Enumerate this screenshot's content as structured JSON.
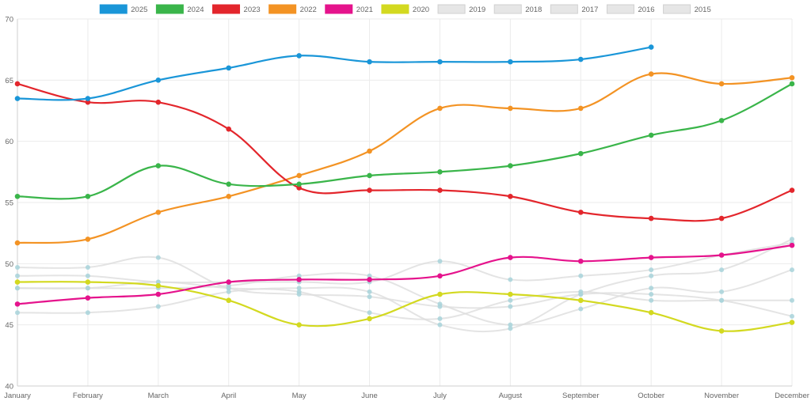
{
  "chart_data": {
    "type": "line",
    "categories": [
      "January",
      "February",
      "March",
      "April",
      "May",
      "June",
      "July",
      "August",
      "September",
      "October",
      "November",
      "December"
    ],
    "ylim": [
      40,
      70
    ],
    "yticks": [
      40,
      45,
      50,
      55,
      60,
      65,
      70
    ],
    "grid": true,
    "legend_position": "top",
    "series": [
      {
        "name": "2025",
        "color": "#1a96d8",
        "active": true,
        "values": [
          63.5,
          63.5,
          65.0,
          66.0,
          67.0,
          66.5,
          66.5,
          66.5,
          66.7,
          67.7,
          null,
          null
        ]
      },
      {
        "name": "2024",
        "color": "#3ab54a",
        "active": true,
        "values": [
          55.5,
          55.5,
          58.0,
          56.5,
          56.5,
          57.2,
          57.5,
          58.0,
          59.0,
          60.5,
          61.7,
          64.7
        ]
      },
      {
        "name": "2023",
        "color": "#e3262c",
        "active": true,
        "values": [
          64.7,
          63.2,
          63.2,
          61.0,
          56.2,
          56.0,
          56.0,
          55.5,
          54.2,
          53.7,
          53.7,
          56.0
        ]
      },
      {
        "name": "2022",
        "color": "#f39324",
        "active": true,
        "values": [
          51.7,
          52.0,
          54.2,
          55.5,
          57.2,
          59.2,
          62.7,
          62.7,
          62.7,
          65.5,
          64.7,
          65.2
        ]
      },
      {
        "name": "2021",
        "color": "#e5138c",
        "active": true,
        "values": [
          46.7,
          47.2,
          47.5,
          48.5,
          48.7,
          48.7,
          49.0,
          50.5,
          50.2,
          50.5,
          50.7,
          51.5
        ]
      },
      {
        "name": "2020",
        "color": "#d3d920",
        "active": true,
        "values": [
          48.5,
          48.5,
          48.2,
          47.0,
          45.0,
          45.5,
          47.5,
          47.5,
          47.0,
          46.0,
          44.5,
          45.2
        ]
      },
      {
        "name": "2019",
        "color": "#dddddd",
        "active": false,
        "values": [
          48.0,
          48.0,
          48.5,
          48.0,
          47.7,
          46.0,
          45.5,
          47.0,
          47.7,
          47.0,
          47.0,
          47.0
        ]
      },
      {
        "name": "2018",
        "color": "#dddddd",
        "active": false,
        "values": [
          48.0,
          48.0,
          48.0,
          48.2,
          49.0,
          49.0,
          46.7,
          45.0,
          46.3,
          48.0,
          47.7,
          49.5
        ]
      },
      {
        "name": "2017",
        "color": "#dddddd",
        "active": false,
        "values": [
          49.7,
          49.7,
          50.5,
          48.0,
          47.5,
          47.3,
          46.5,
          46.5,
          47.5,
          47.5,
          47.0,
          45.7
        ]
      },
      {
        "name": "2016",
        "color": "#dddddd",
        "active": false,
        "values": [
          46.0,
          46.0,
          46.5,
          47.7,
          48.0,
          47.7,
          45.0,
          44.7,
          47.5,
          49.0,
          49.5,
          52.0
        ]
      },
      {
        "name": "2015",
        "color": "#dddddd",
        "active": false,
        "values": [
          49.0,
          49.0,
          48.5,
          48.5,
          48.5,
          48.5,
          50.2,
          48.7,
          49.0,
          49.5,
          50.7,
          51.7
        ]
      }
    ]
  }
}
